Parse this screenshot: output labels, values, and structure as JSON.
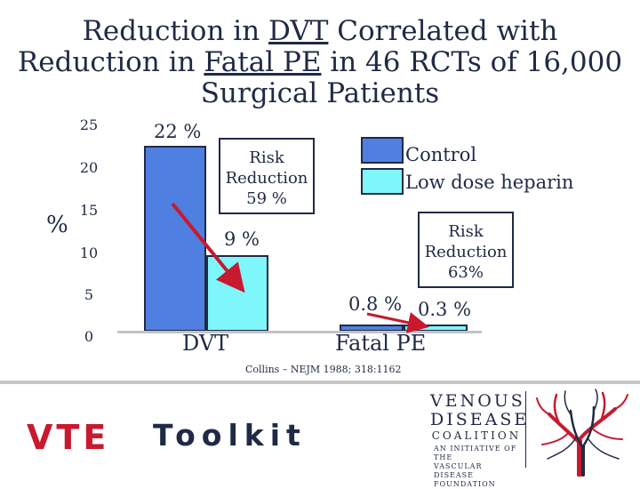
{
  "chart_data": {
    "type": "bar",
    "title_parts": [
      "Reduction in ",
      "DVT",
      " Correlated with",
      "Reduction in ",
      "Fatal PE",
      " in 46 RCTs of 16,000",
      "Surgical Patients"
    ],
    "ylabel": "%",
    "ylim": [
      0,
      25
    ],
    "yticks": [
      "25",
      "20",
      "15",
      "10",
      "5",
      "0"
    ],
    "categories": [
      "DVT",
      "Fatal PE"
    ],
    "series": [
      {
        "name": "Control",
        "color": "#4f7fe0",
        "values": [
          22,
          0.8
        ],
        "labels": [
          "22 %",
          "0.8 %"
        ]
      },
      {
        "name": "Low dose heparin",
        "color": "#7ff7fa",
        "values": [
          9,
          0.3
        ],
        "labels": [
          "9 %",
          "0.3 %"
        ]
      }
    ],
    "annotations": [
      {
        "lines": [
          "Risk",
          "Reduction",
          "59 %"
        ]
      },
      {
        "lines": [
          "Risk",
          "Reduction",
          "63%"
        ]
      }
    ],
    "arrow_color": "#c8192e",
    "legend_position": "top-right"
  },
  "citation": "Collins – NEJM 1988; 318:1162",
  "footer": {
    "vte": "VTE",
    "toolkit": "Toolkit",
    "logo_line1": "VENOUS",
    "logo_line2": "DISEASE",
    "logo_line3": "COALITION",
    "logo_tagline": [
      "AN INITIATIVE OF THE",
      "VASCULAR DISEASE",
      "FOUNDATION"
    ],
    "brand_red": "#c8192e",
    "brand_navy": "#1f2a44"
  }
}
